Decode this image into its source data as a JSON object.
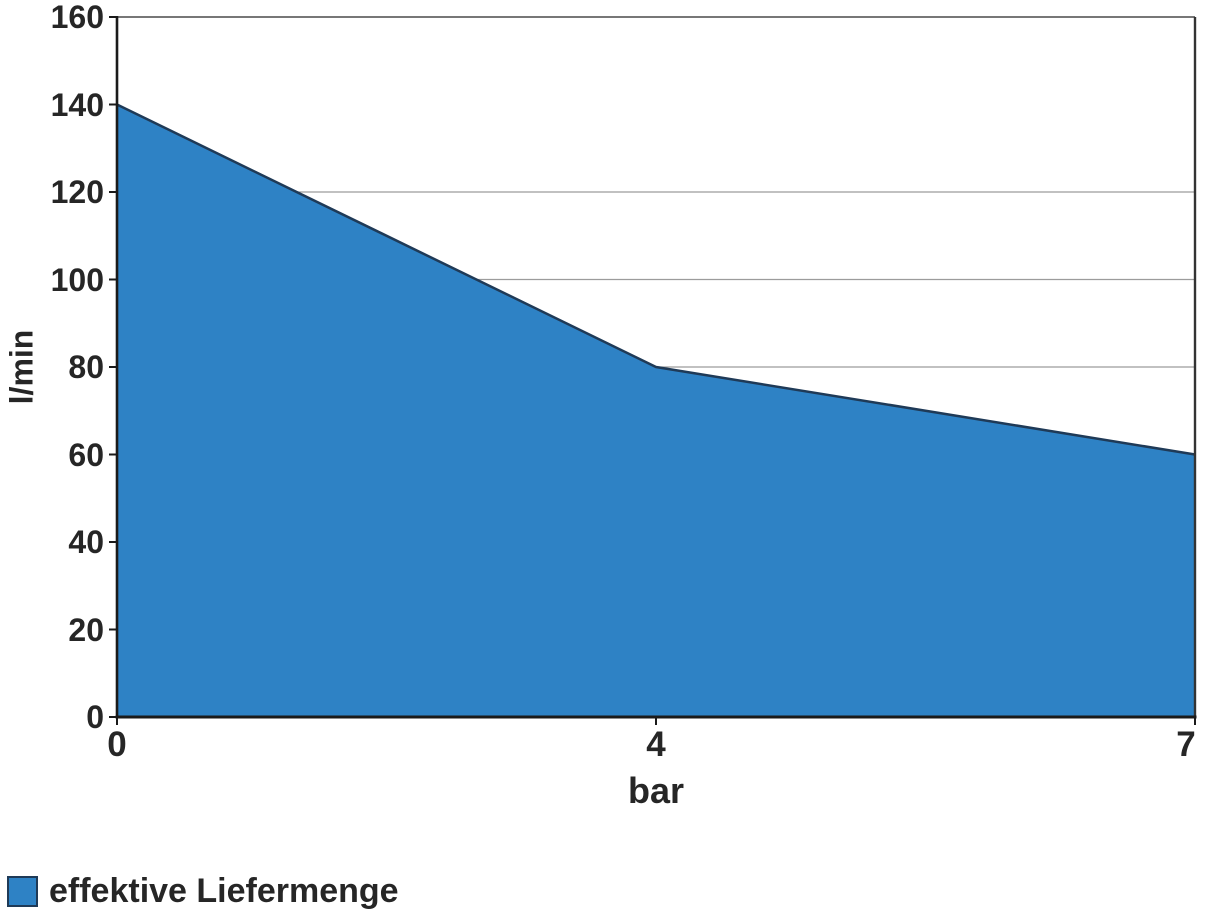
{
  "chart_data": {
    "type": "area",
    "title": "",
    "x": [
      0,
      4,
      7
    ],
    "x_tick_labels": [
      "0",
      "4",
      "7"
    ],
    "x_spacing": "equal-categories",
    "series": [
      {
        "name": "effektive Liefermenge",
        "values": [
          140,
          80,
          60
        ]
      }
    ],
    "xlabel": "bar",
    "ylabel": "l/min",
    "ylim": [
      0,
      160
    ],
    "ytick_step": 20,
    "ytick_labels": [
      "160",
      "140",
      "120",
      "100",
      "80",
      "60",
      "40",
      "20",
      "0"
    ],
    "gridlines": [
      20,
      40,
      60,
      80,
      100,
      120
    ],
    "grid_visible_above_area": [
      80,
      100,
      120
    ],
    "legend": {
      "position": "bottom-left",
      "entries": [
        {
          "label": "effektive Liefermenge",
          "color": "#2E82C5"
        }
      ]
    },
    "colors": {
      "area_fill": "#2E82C5",
      "area_line": "#1F3A57",
      "gridline": "#9C9C9C",
      "axis": "#1A1A1A",
      "border": "#4A4A4A",
      "text": "#262626"
    }
  }
}
